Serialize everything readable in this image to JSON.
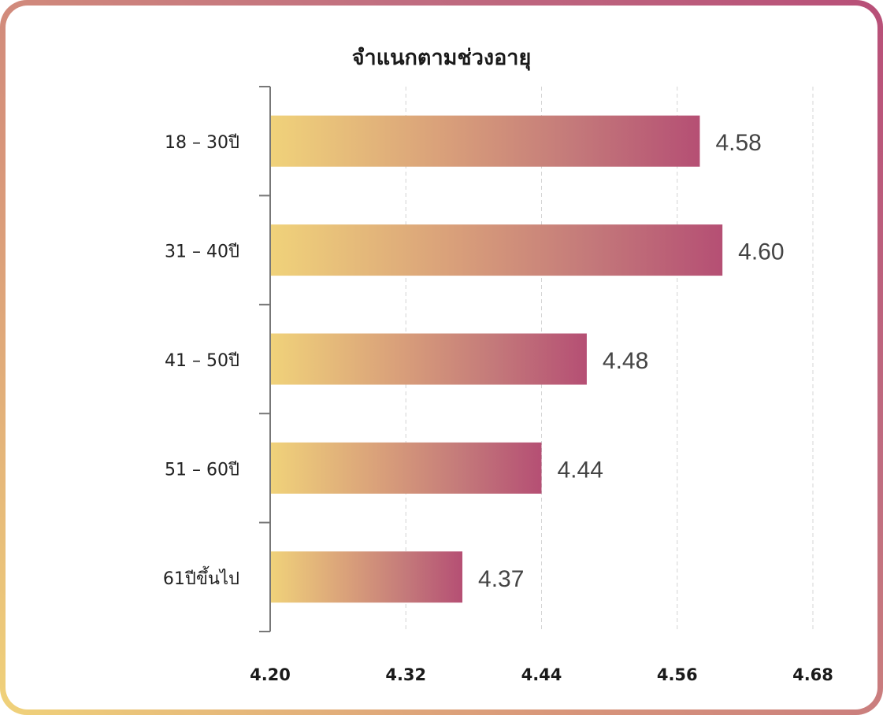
{
  "chart_data": {
    "type": "bar",
    "orientation": "horizontal",
    "title": "จำแนกตามช่วงอายุ",
    "categories": [
      "18 – 30ปี",
      "31 – 40ปี",
      "41 – 50ปี",
      "51 – 60ปี",
      "61ปีขึ้นไป"
    ],
    "values": [
      4.58,
      4.6,
      4.48,
      4.44,
      4.37
    ],
    "value_labels": [
      "4.58",
      "4.60",
      "4.48",
      "4.44",
      "4.37"
    ],
    "xlim": [
      4.2,
      4.68
    ],
    "xticks": [
      "4.20",
      "4.32",
      "4.44",
      "4.56",
      "4.68"
    ],
    "xtick_values": [
      4.2,
      4.32,
      4.44,
      4.56,
      4.68
    ],
    "grid": "vertical dashed",
    "bar_gradient": [
      "#f0d27a",
      "#d9a07a",
      "#c47a7a",
      "#b54f74"
    ]
  }
}
